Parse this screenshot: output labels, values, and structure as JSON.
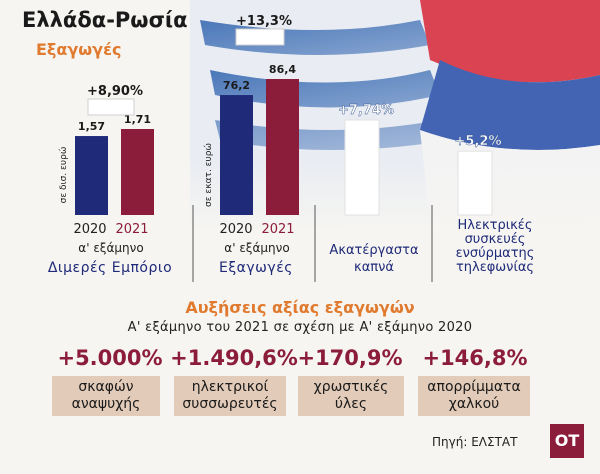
{
  "header": {
    "title": "Ελλάδα-Ρωσία",
    "subtitle": "Εξαγωγές"
  },
  "chart_data": [
    {
      "type": "bar",
      "title": "Διμερές Εμπόριο",
      "period": "α' εξάμηνο",
      "unit_label": "σε δισ. ευρώ",
      "categories": [
        "2020",
        "2021"
      ],
      "values": [
        1.57,
        1.71
      ],
      "value_labels": [
        "1,57",
        "1,71"
      ],
      "change_label": "+8,90%",
      "colors": [
        "#1f2a78",
        "#8c1d3a"
      ]
    },
    {
      "type": "bar",
      "title": "Εξαγωγές",
      "period": "α' εξάμηνο",
      "unit_label": "σε εκατ. ευρώ",
      "categories": [
        "2020",
        "2021"
      ],
      "values": [
        76.2,
        86.4
      ],
      "value_labels": [
        "76,2",
        "86,4"
      ],
      "change_label": "+13,3%",
      "colors": [
        "#1f2a78",
        "#8c1d3a"
      ]
    },
    {
      "type": "bar",
      "title": "Ακατέργαστα καπνά",
      "categories": [
        "Ακατέργαστα καπνά"
      ],
      "values": [
        7.74
      ],
      "value_labels": [
        "+7,74%"
      ],
      "colors": [
        "#ffffff"
      ]
    },
    {
      "type": "bar",
      "title": "Ηλεκτρικές συσκευές ενσύρματης τηλεφωνίας",
      "categories": [
        "Ηλεκτρικές συσκευές ενσύρματης τηλεφωνίας"
      ],
      "values": [
        5.2
      ],
      "value_labels": [
        "+5,2%"
      ],
      "colors": [
        "#ffffff"
      ]
    }
  ],
  "labels": {
    "group1_title": "Διμερές Εμπόριο",
    "group2_title": "Εξαγωγές",
    "group3_line1": "Ακατέργαστα",
    "group3_line2": "καπνά",
    "group4_line1": "Ηλεκτρικές",
    "group4_line2": "συσκευές",
    "group4_line3": "ενσύρματης",
    "group4_line4": "τηλεφωνίας"
  },
  "increases": {
    "title": "Αυξήσεις αξίας εξαγωγών",
    "subtitle": "Α' εξάμηνο του 2021 σε σχέση με Α' εξάμηνο 2020",
    "items": [
      {
        "value": "+5.000%",
        "line1": "σκαφών",
        "line2": "αναψυχής"
      },
      {
        "value": "+1.490,6%",
        "line1": "ηλεκτρικοί",
        "line2": "συσσωρευτές"
      },
      {
        "value": "+170,9%",
        "line1": "χρωστικές",
        "line2": "ύλες"
      },
      {
        "value": "+146,8%",
        "line1": "απορρίμματα",
        "line2": "χαλκού"
      }
    ]
  },
  "footer": {
    "source": "Πηγή: ΕΛΣΤΑΤ",
    "logo": "OT"
  }
}
